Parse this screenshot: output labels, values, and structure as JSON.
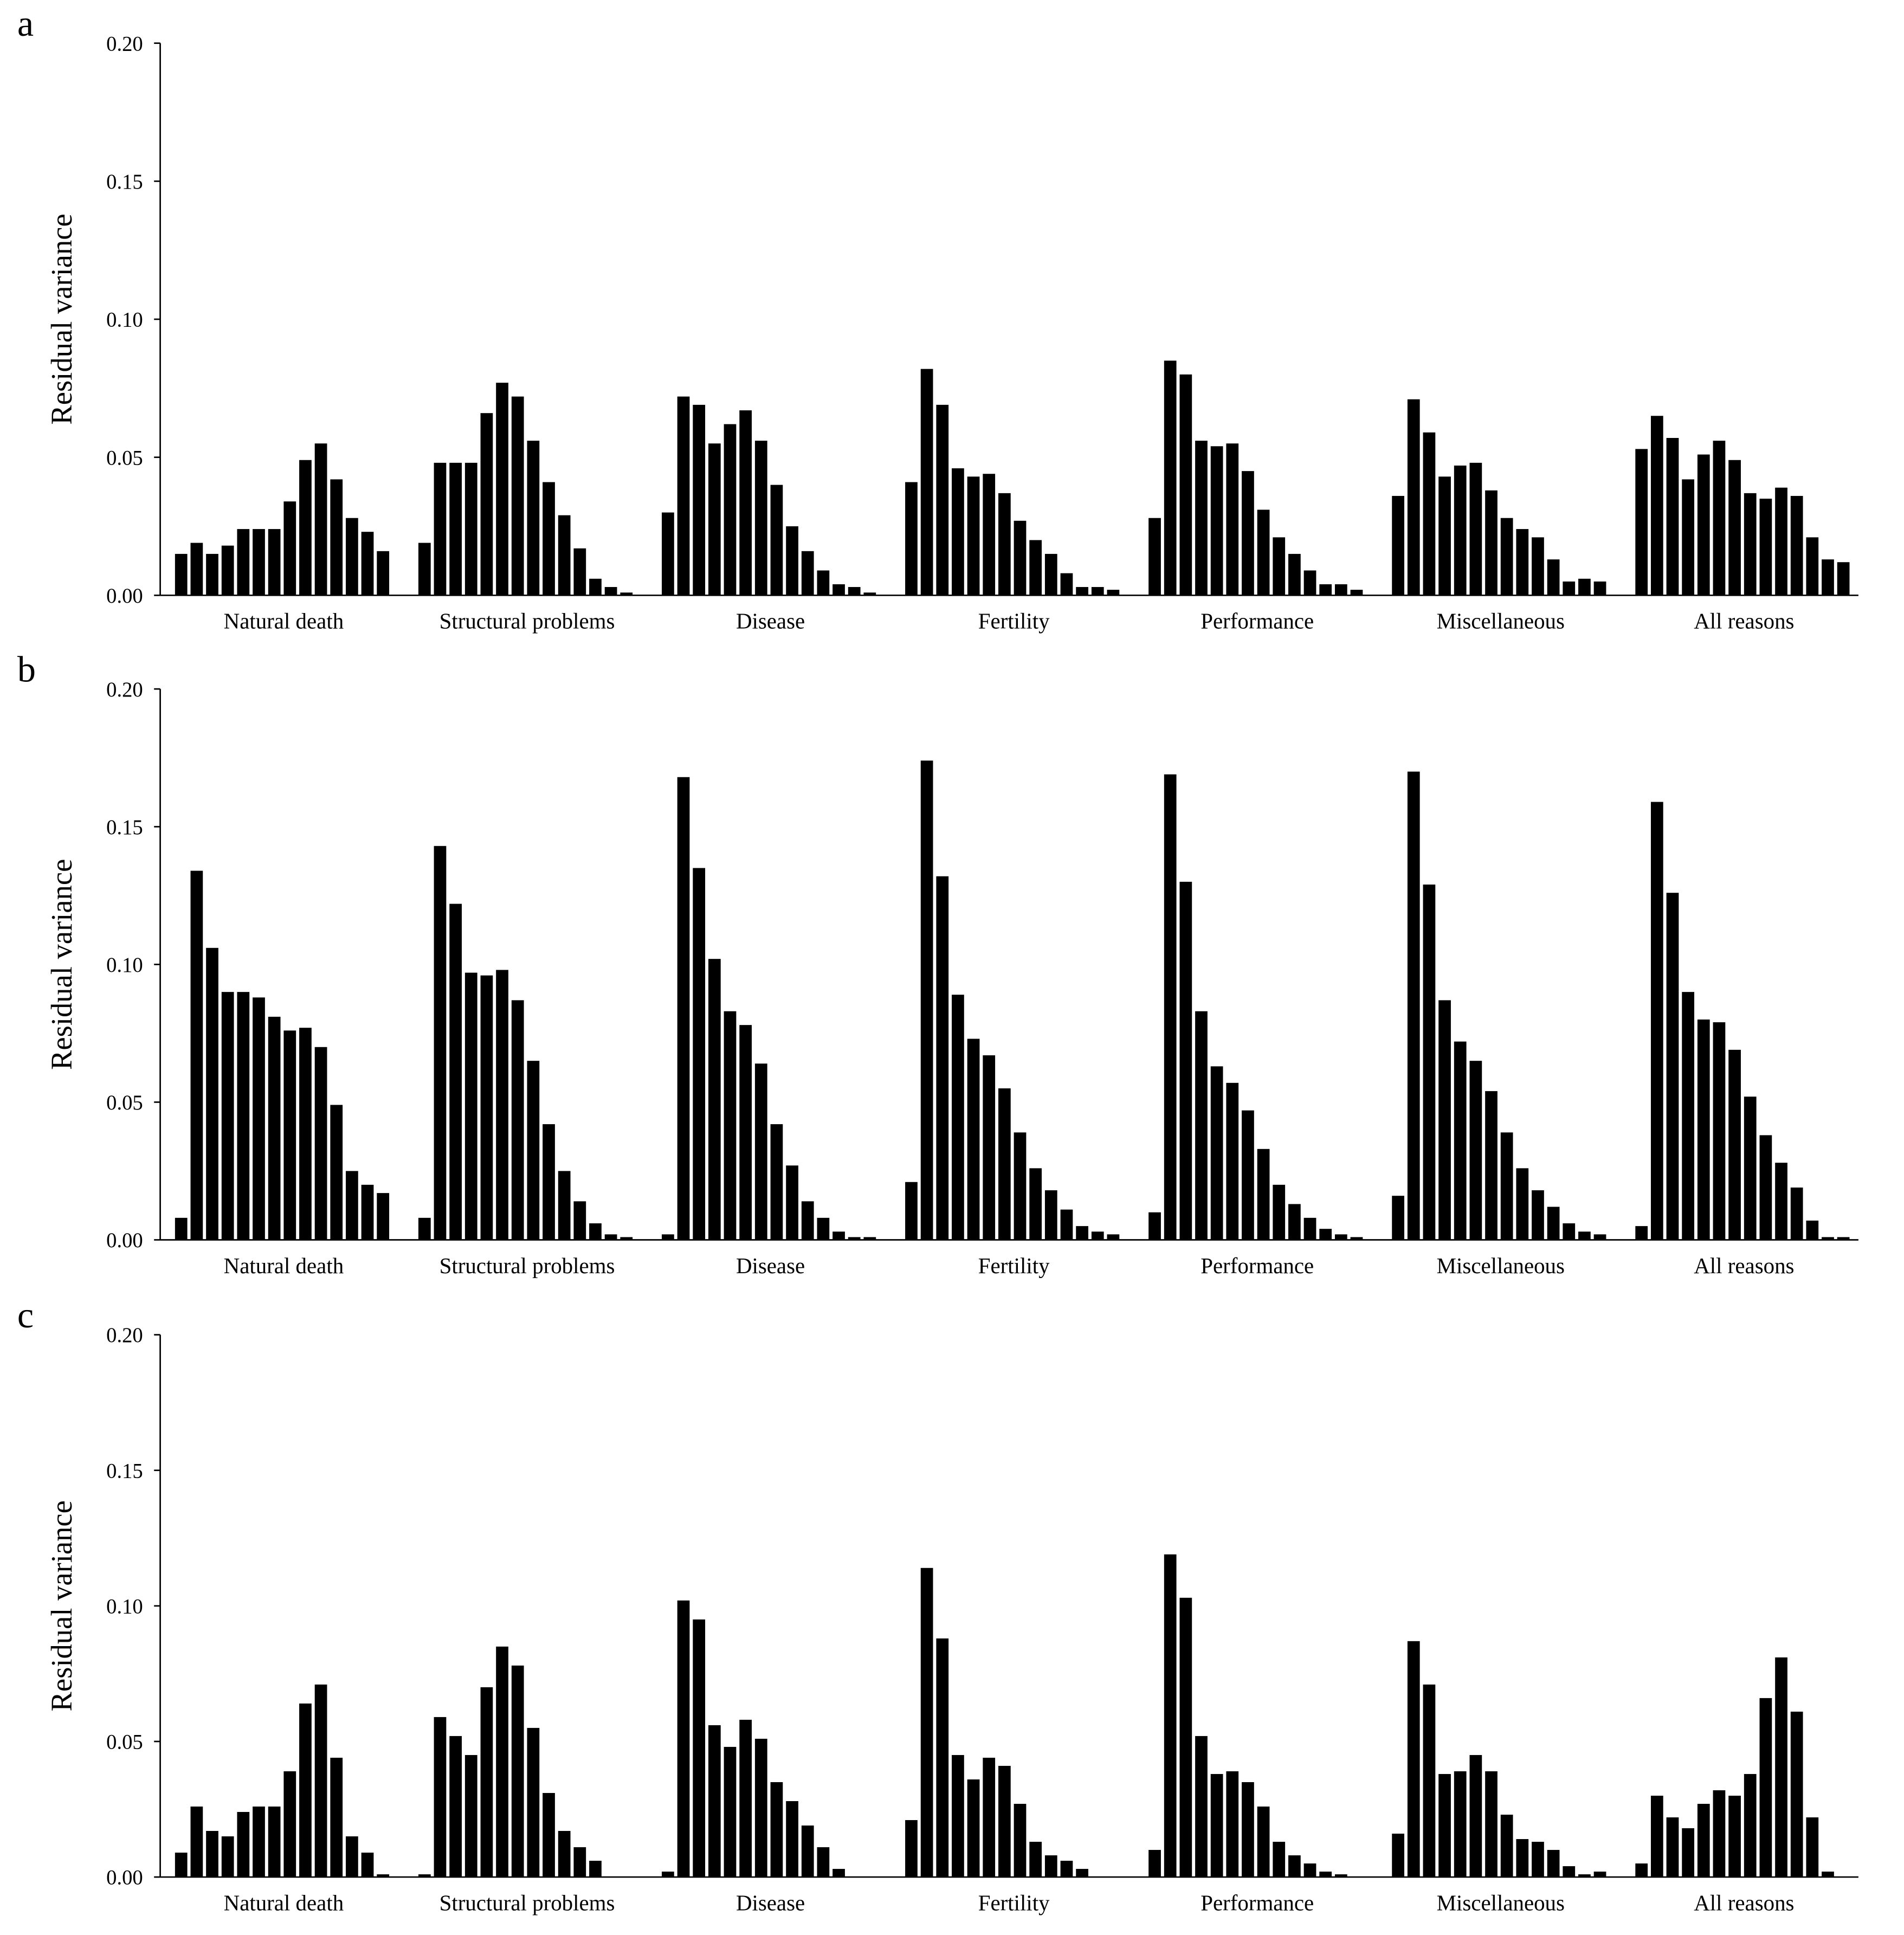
{
  "chart_data": [
    {
      "type": "bar",
      "panel": "a",
      "ylabel": "Residual variance",
      "ylim": [
        0,
        0.2
      ],
      "yticks": [
        {
          "value": 0,
          "label": "0.00"
        },
        {
          "value": 0.05,
          "label": "0.05"
        },
        {
          "value": 0.1,
          "label": "0.10"
        },
        {
          "value": 0.15,
          "label": "0.15"
        },
        {
          "value": 0.2,
          "label": "0.20"
        }
      ],
      "color": "#000000",
      "groups": [
        {
          "name": "Natural death",
          "values": [
            0.015,
            0.019,
            0.015,
            0.018,
            0.024,
            0.024,
            0.024,
            0.034,
            0.049,
            0.055,
            0.042,
            0.028,
            0.023,
            0.016
          ]
        },
        {
          "name": "Structural problems",
          "values": [
            0.019,
            0.048,
            0.048,
            0.048,
            0.066,
            0.077,
            0.072,
            0.056,
            0.041,
            0.029,
            0.017,
            0.006,
            0.003,
            0.001
          ]
        },
        {
          "name": "Disease",
          "values": [
            0.03,
            0.072,
            0.069,
            0.055,
            0.062,
            0.067,
            0.056,
            0.04,
            0.025,
            0.016,
            0.009,
            0.004,
            0.003,
            0.001
          ]
        },
        {
          "name": "Fertility",
          "values": [
            0.041,
            0.082,
            0.069,
            0.046,
            0.043,
            0.044,
            0.037,
            0.027,
            0.02,
            0.015,
            0.008,
            0.003,
            0.003,
            0.002
          ]
        },
        {
          "name": "Performance",
          "values": [
            0.028,
            0.085,
            0.08,
            0.056,
            0.054,
            0.055,
            0.045,
            0.031,
            0.021,
            0.015,
            0.009,
            0.004,
            0.004,
            0.002
          ]
        },
        {
          "name": "Miscellaneous",
          "values": [
            0.036,
            0.071,
            0.059,
            0.043,
            0.047,
            0.048,
            0.038,
            0.028,
            0.024,
            0.021,
            0.013,
            0.005,
            0.006,
            0.005
          ]
        },
        {
          "name": "All reasons",
          "values": [
            0.053,
            0.065,
            0.057,
            0.042,
            0.051,
            0.056,
            0.049,
            0.037,
            0.035,
            0.039,
            0.036,
            0.021,
            0.013,
            0.012
          ]
        }
      ]
    },
    {
      "type": "bar",
      "panel": "b",
      "ylabel": "Residual variance",
      "ylim": [
        0,
        0.2
      ],
      "yticks": [
        {
          "value": 0,
          "label": "0.00"
        },
        {
          "value": 0.05,
          "label": "0.05"
        },
        {
          "value": 0.1,
          "label": "0.10"
        },
        {
          "value": 0.15,
          "label": "0.15"
        },
        {
          "value": 0.2,
          "label": "0.20"
        }
      ],
      "color": "#000000",
      "groups": [
        {
          "name": "Natural death",
          "values": [
            0.008,
            0.134,
            0.106,
            0.09,
            0.09,
            0.088,
            0.081,
            0.076,
            0.077,
            0.07,
            0.049,
            0.025,
            0.02,
            0.017
          ]
        },
        {
          "name": "Structural problems",
          "values": [
            0.008,
            0.143,
            0.122,
            0.097,
            0.096,
            0.098,
            0.087,
            0.065,
            0.042,
            0.025,
            0.014,
            0.006,
            0.002,
            0.001
          ]
        },
        {
          "name": "Disease",
          "values": [
            0.002,
            0.168,
            0.135,
            0.102,
            0.083,
            0.078,
            0.064,
            0.042,
            0.027,
            0.014,
            0.008,
            0.003,
            0.001,
            0.001
          ]
        },
        {
          "name": "Fertility",
          "values": [
            0.021,
            0.174,
            0.132,
            0.089,
            0.073,
            0.067,
            0.055,
            0.039,
            0.026,
            0.018,
            0.011,
            0.005,
            0.003,
            0.002
          ]
        },
        {
          "name": "Performance",
          "values": [
            0.01,
            0.169,
            0.13,
            0.083,
            0.063,
            0.057,
            0.047,
            0.033,
            0.02,
            0.013,
            0.008,
            0.004,
            0.002,
            0.001
          ]
        },
        {
          "name": "Miscellaneous",
          "values": [
            0.016,
            0.17,
            0.129,
            0.087,
            0.072,
            0.065,
            0.054,
            0.039,
            0.026,
            0.018,
            0.012,
            0.006,
            0.003,
            0.002
          ]
        },
        {
          "name": "All reasons",
          "values": [
            0.005,
            0.159,
            0.126,
            0.09,
            0.08,
            0.079,
            0.069,
            0.052,
            0.038,
            0.028,
            0.019,
            0.007,
            0.001,
            0.001
          ]
        }
      ]
    },
    {
      "type": "bar",
      "panel": "c",
      "ylabel": "Residual variance",
      "ylim": [
        0,
        0.2
      ],
      "yticks": [
        {
          "value": 0,
          "label": "0.00"
        },
        {
          "value": 0.05,
          "label": "0.05"
        },
        {
          "value": 0.1,
          "label": "0.10"
        },
        {
          "value": 0.15,
          "label": "0.15"
        },
        {
          "value": 0.2,
          "label": "0.20"
        }
      ],
      "color": "#000000",
      "groups": [
        {
          "name": "Natural death",
          "values": [
            0.009,
            0.026,
            0.017,
            0.015,
            0.024,
            0.026,
            0.026,
            0.039,
            0.064,
            0.071,
            0.044,
            0.015,
            0.009,
            0.001
          ]
        },
        {
          "name": "Structural problems",
          "values": [
            0.001,
            0.059,
            0.052,
            0.045,
            0.07,
            0.085,
            0.078,
            0.055,
            0.031,
            0.017,
            0.011,
            0.006,
            0,
            0
          ]
        },
        {
          "name": "Disease",
          "values": [
            0.002,
            0.102,
            0.095,
            0.056,
            0.048,
            0.058,
            0.051,
            0.035,
            0.028,
            0.019,
            0.011,
            0.003,
            0,
            0
          ]
        },
        {
          "name": "Fertility",
          "values": [
            0.021,
            0.114,
            0.088,
            0.045,
            0.036,
            0.044,
            0.041,
            0.027,
            0.013,
            0.008,
            0.006,
            0.003,
            0,
            0
          ]
        },
        {
          "name": "Performance",
          "values": [
            0.01,
            0.119,
            0.103,
            0.052,
            0.038,
            0.039,
            0.035,
            0.026,
            0.013,
            0.008,
            0.005,
            0.002,
            0.001,
            0
          ]
        },
        {
          "name": "Miscellaneous",
          "values": [
            0.016,
            0.087,
            0.071,
            0.038,
            0.039,
            0.045,
            0.039,
            0.023,
            0.014,
            0.013,
            0.01,
            0.004,
            0.001,
            0.002
          ]
        },
        {
          "name": "All reasons",
          "values": [
            0.005,
            0.03,
            0.022,
            0.018,
            0.027,
            0.032,
            0.03,
            0.038,
            0.066,
            0.081,
            0.061,
            0.022,
            0.002,
            0
          ]
        }
      ]
    }
  ]
}
